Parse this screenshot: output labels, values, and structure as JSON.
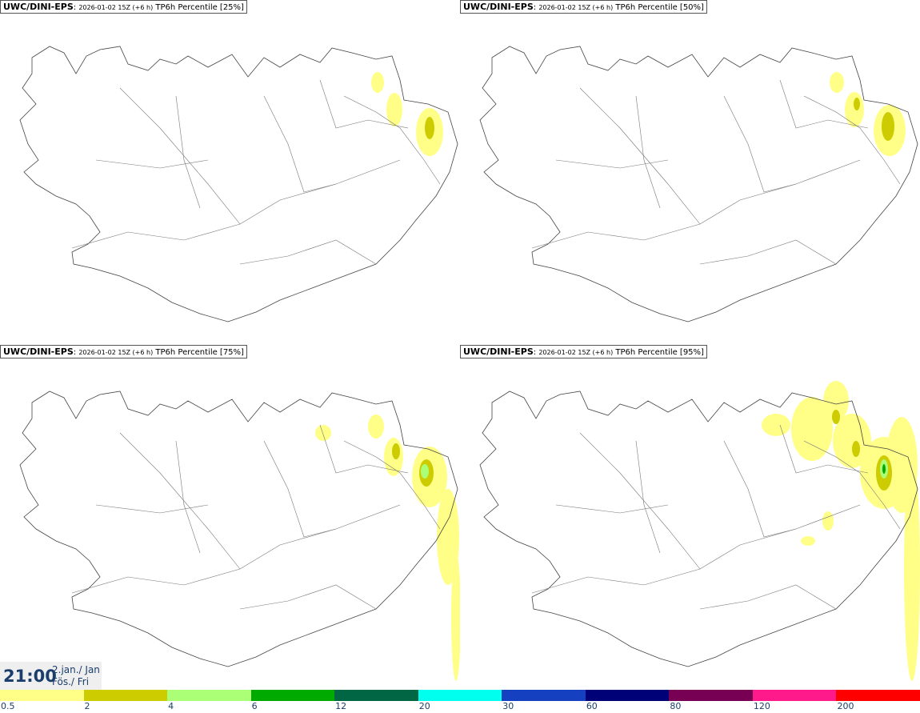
{
  "panels": [
    {
      "source": "UWC/DINI-EPS",
      "run": "2026-01-02 15Z (+6 h)",
      "field": "TP6h Percentile [25%]"
    },
    {
      "source": "UWC/DINI-EPS",
      "run": "2026-01-02 15Z (+6 h)",
      "field": "TP6h Percentile [50%]"
    },
    {
      "source": "UWC/DINI-EPS",
      "run": "2026-01-02 15Z (+6 h)",
      "field": "TP6h Percentile [75%]"
    },
    {
      "source": "UWC/DINI-EPS",
      "run": "2026-01-02 15Z (+6 h)",
      "field": "TP6h Percentile [95%]"
    }
  ],
  "valid_time": {
    "time": "21:00",
    "date_line1": "2.jan./ Jan",
    "date_line2": "Fös./ Fri"
  },
  "colorbar": {
    "labels": [
      "0.5",
      "2",
      "4",
      "6",
      "12",
      "20",
      "30",
      "60",
      "80",
      "120",
      "200"
    ],
    "colors": [
      "#ffff88",
      "#cccc00",
      "#aaff77",
      "#00aa00",
      "#006644",
      "#00ffee",
      "#1540c0",
      "#000077",
      "#770055",
      "#ff1a8c",
      "#ff0000"
    ]
  }
}
